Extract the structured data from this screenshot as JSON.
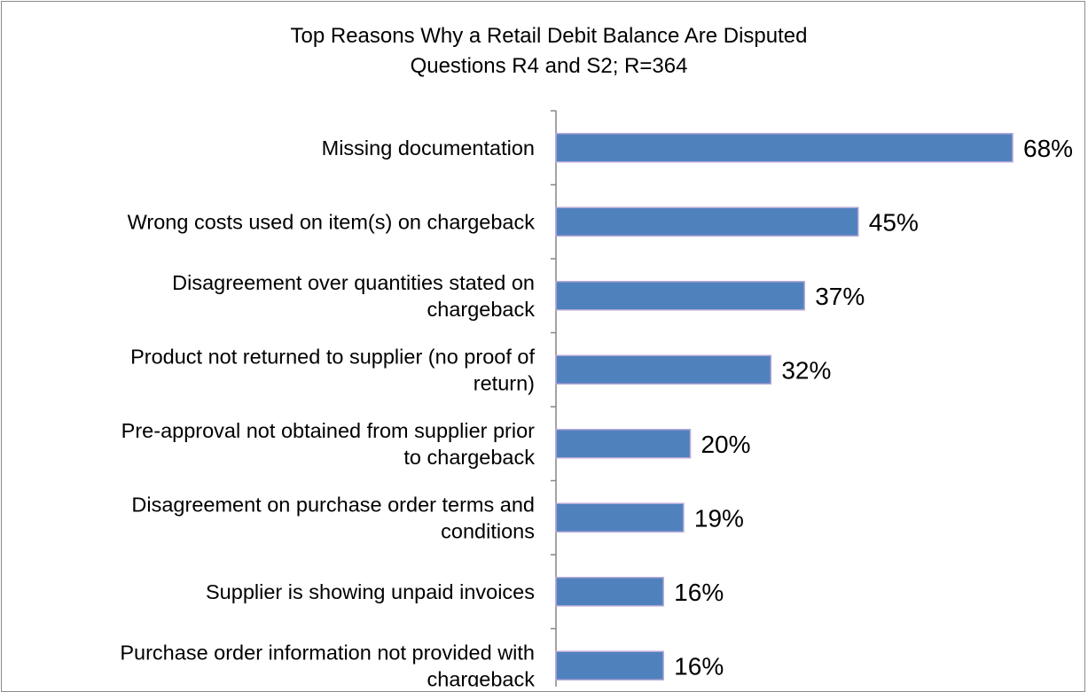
{
  "chart_data": {
    "type": "bar",
    "orientation": "horizontal",
    "title": "Top Reasons Why a Retail Debit Balance Are Disputed",
    "subtitle": "Questions R4 and S2; R=364",
    "xlabel": "",
    "ylabel": "",
    "xlim": [
      0,
      70
    ],
    "grid": false,
    "legend": "none",
    "categories": [
      [
        "Missing documentation"
      ],
      [
        "Wrong costs used on item(s) on chargeback"
      ],
      [
        "Disagreement over quantities stated on",
        "chargeback"
      ],
      [
        "Product not returned to supplier (no proof of",
        "return)"
      ],
      [
        "Pre-approval not obtained from supplier prior",
        "to chargeback"
      ],
      [
        "Disagreement on purchase order terms and",
        "conditions"
      ],
      [
        "Supplier is showing unpaid invoices"
      ],
      [
        "Purchase order information not provided with",
        "chargeback"
      ]
    ],
    "values": [
      68,
      45,
      37,
      32,
      20,
      19,
      16,
      16
    ],
    "value_labels": [
      "68%",
      "45%",
      "37%",
      "32%",
      "20%",
      "19%",
      "16%",
      "16%"
    ],
    "colors": {
      "bar_fill": "#4F81BD",
      "bar_stroke": "#B4A7D6",
      "axis": "#868686"
    }
  }
}
